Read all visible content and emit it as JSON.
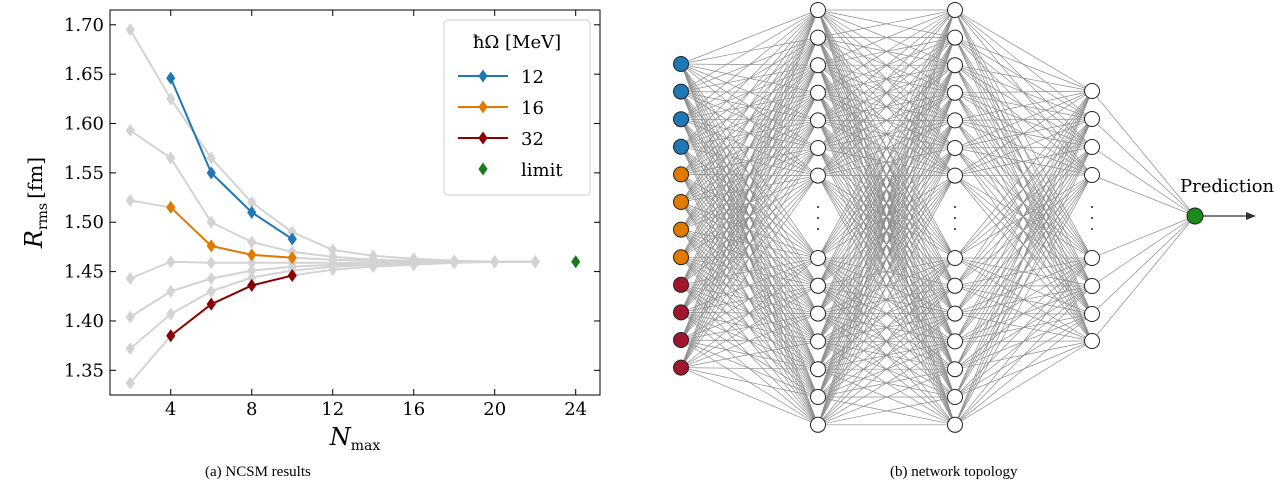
{
  "caption_a": "(a) NCSM results",
  "caption_b": "(b) network topology",
  "chart_data": {
    "type": "line",
    "xlabel": "N_max",
    "ylabel": "R_rms [fm]",
    "xlim": [
      1,
      25.2
    ],
    "ylim": [
      1.325,
      1.715
    ],
    "xticks": [
      4,
      8,
      12,
      16,
      20,
      24
    ],
    "yticks": [
      1.35,
      1.4,
      1.45,
      1.5,
      1.55,
      1.6,
      1.65,
      1.7
    ],
    "grid": false,
    "legend_title": "ħΩ [MeV]",
    "legend_position": "top-right",
    "gray_color": "#d3d3d3",
    "gray_series": [
      {
        "x": [
          2,
          4,
          6,
          8,
          10,
          12,
          14,
          16,
          18,
          20,
          22
        ],
        "values": [
          1.695,
          1.625,
          1.565,
          1.52,
          1.49,
          1.472,
          1.466,
          1.463,
          1.461,
          1.46,
          1.46
        ]
      },
      {
        "x": [
          2,
          4,
          6,
          8,
          10,
          12,
          14,
          16,
          18,
          20,
          22
        ],
        "values": [
          1.593,
          1.565,
          1.5,
          1.48,
          1.47,
          1.465,
          1.462,
          1.461,
          1.46,
          1.46,
          1.46
        ]
      },
      {
        "x": [
          2,
          4,
          6,
          8,
          10,
          12,
          14,
          16,
          18,
          20,
          22
        ],
        "values": [
          1.522,
          1.515,
          1.476,
          1.467,
          1.464,
          1.462,
          1.461,
          1.46,
          1.46,
          1.46,
          1.46
        ]
      },
      {
        "x": [
          2,
          4,
          6,
          8,
          10,
          12,
          14,
          16,
          18,
          20,
          22
        ],
        "values": [
          1.443,
          1.46,
          1.459,
          1.459,
          1.459,
          1.459,
          1.459,
          1.46,
          1.46,
          1.46,
          1.46
        ]
      },
      {
        "x": [
          2,
          4,
          6,
          8,
          10,
          12,
          14,
          16,
          18,
          20,
          22
        ],
        "values": [
          1.404,
          1.43,
          1.443,
          1.451,
          1.455,
          1.457,
          1.458,
          1.459,
          1.46,
          1.46,
          1.46
        ]
      },
      {
        "x": [
          2,
          4,
          6,
          8,
          10,
          12,
          14,
          16,
          18,
          20,
          22
        ],
        "values": [
          1.372,
          1.407,
          1.43,
          1.444,
          1.451,
          1.455,
          1.457,
          1.458,
          1.459,
          1.46,
          1.46
        ]
      },
      {
        "x": [
          2,
          4,
          6,
          8,
          10,
          12,
          14,
          16,
          18,
          20,
          22
        ],
        "values": [
          1.337,
          1.385,
          1.417,
          1.436,
          1.446,
          1.452,
          1.455,
          1.457,
          1.459,
          1.46,
          1.46
        ]
      }
    ],
    "series": [
      {
        "name": "12",
        "color": "#1f77b4",
        "x": [
          4,
          6,
          8,
          10
        ],
        "values": [
          1.646,
          1.55,
          1.51,
          1.483
        ]
      },
      {
        "name": "16",
        "color": "#e07b00",
        "x": [
          4,
          6,
          8,
          10
        ],
        "values": [
          1.515,
          1.476,
          1.467,
          1.464
        ]
      },
      {
        "name": "32",
        "color": "#8b0000",
        "x": [
          4,
          6,
          8,
          10
        ],
        "values": [
          1.385,
          1.417,
          1.436,
          1.446
        ]
      }
    ],
    "limit": {
      "name": "limit",
      "color": "#1a7a1a",
      "x": 24,
      "value": 1.46
    }
  },
  "network": {
    "prediction_label": "Prediction",
    "input_colors": [
      "#1f77b4",
      "#1f77b4",
      "#1f77b4",
      "#1f77b4",
      "#e07b00",
      "#e07b00",
      "#e07b00",
      "#e07b00",
      "#a0162e",
      "#a0162e",
      "#a0162e",
      "#a0162e"
    ],
    "output_color": "#1a8a1a",
    "line_color": "#808080"
  }
}
